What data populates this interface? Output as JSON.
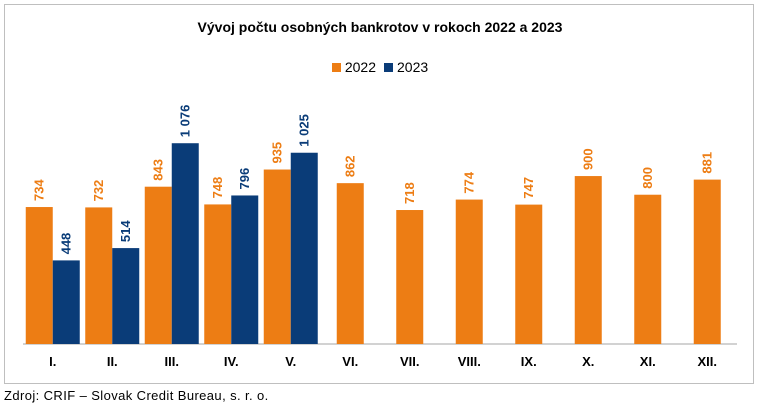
{
  "chart_data": {
    "type": "bar",
    "title": "Vývoj počtu osobných bankrotov v rokoch 2022 a 2023",
    "categories": [
      "I.",
      "II.",
      "III.",
      "IV.",
      "V.",
      "VI.",
      "VII.",
      "VIII.",
      "IX.",
      "X.",
      "XI.",
      "XII."
    ],
    "series": [
      {
        "name": "2022",
        "color": "#ed7d14",
        "values": [
          734,
          732,
          843,
          748,
          935,
          862,
          718,
          774,
          747,
          900,
          800,
          881
        ],
        "labels": [
          "734",
          "732",
          "843",
          "748",
          "935",
          "862",
          "718",
          "774",
          "747",
          "900",
          "800",
          "881"
        ]
      },
      {
        "name": "2023",
        "color": "#0a3c78",
        "values": [
          448,
          514,
          1076,
          796,
          1025,
          null,
          null,
          null,
          null,
          null,
          null,
          null
        ],
        "labels": [
          "448",
          "514",
          "1 076",
          "796",
          "1 025",
          "",
          "",
          "",
          "",
          "",
          "",
          ""
        ]
      }
    ],
    "ylim": [
      0,
      1300
    ],
    "grid": false,
    "legend_position": "top-center",
    "xlabel": "",
    "ylabel": ""
  },
  "source_note": "Zdroj: CRIF – Slovak Credit Bureau, s. r. o."
}
